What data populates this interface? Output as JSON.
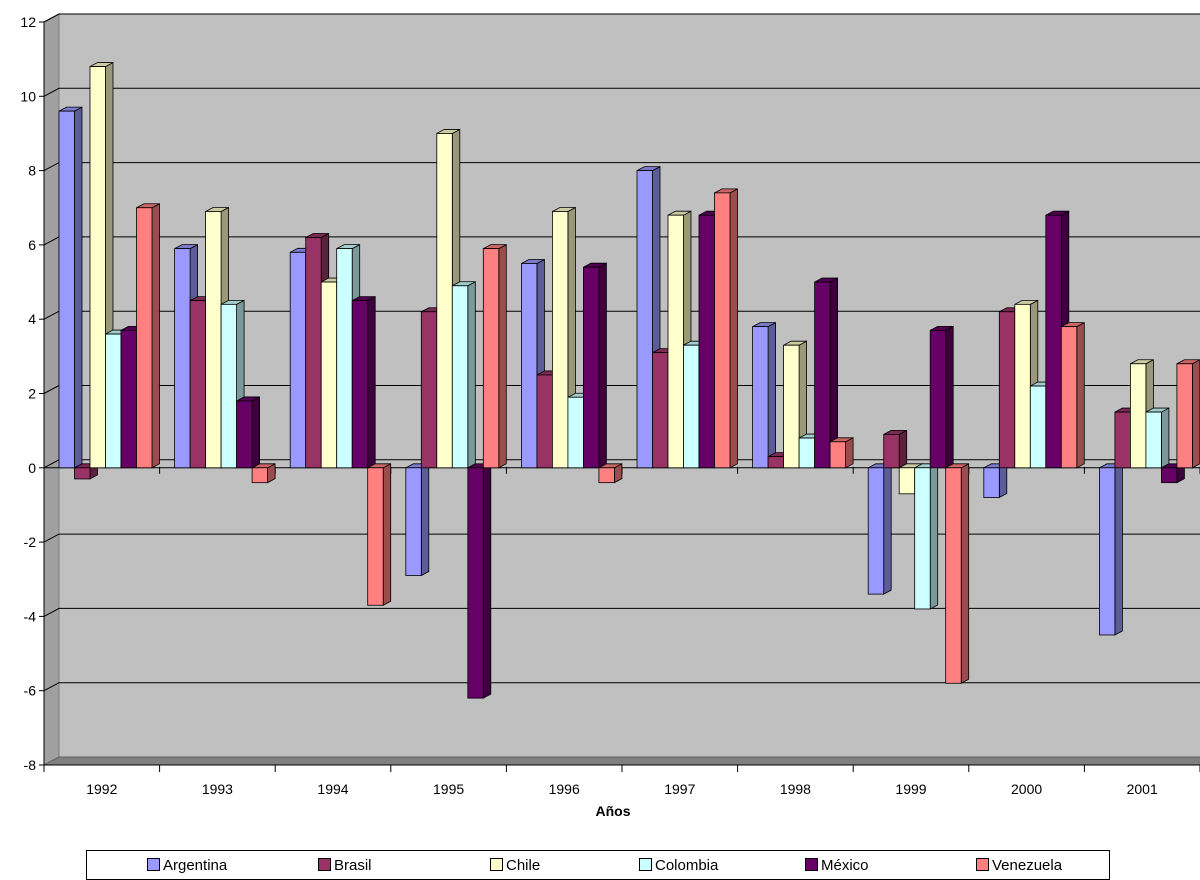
{
  "chart_data": {
    "type": "bar",
    "title": "",
    "xlabel": "Años",
    "ylabel": "",
    "ylim": [
      -8,
      12
    ],
    "yticks": [
      "-8",
      "-6",
      "-4",
      "-2",
      "0",
      "2",
      "4",
      "6",
      "8",
      "10",
      "12"
    ],
    "grid": true,
    "legend_position": "bottom",
    "categories": [
      "1992",
      "1993",
      "1994",
      "1995",
      "1996",
      "1997",
      "1998",
      "1999",
      "2000",
      "2001"
    ],
    "series": [
      {
        "name": "Argentina",
        "color": "#9999FF",
        "values": [
          9.6,
          5.9,
          5.8,
          -2.9,
          5.5,
          8.0,
          3.8,
          -3.4,
          -0.8,
          -4.5
        ]
      },
      {
        "name": "Brasil",
        "color": "#993366",
        "values": [
          -0.3,
          4.5,
          6.2,
          4.2,
          2.5,
          3.1,
          0.3,
          0.9,
          4.2,
          1.5
        ]
      },
      {
        "name": "Chile",
        "color": "#FFFFCC",
        "values": [
          10.8,
          6.9,
          5.0,
          9.0,
          6.9,
          6.8,
          3.3,
          -0.7,
          4.4,
          2.8
        ]
      },
      {
        "name": "Colombia",
        "color": "#CCFFFF",
        "values": [
          3.6,
          4.4,
          5.9,
          4.9,
          1.9,
          3.3,
          0.8,
          -3.8,
          2.2,
          1.5
        ]
      },
      {
        "name": "México",
        "color": "#660066",
        "values": [
          3.7,
          1.8,
          4.5,
          -6.2,
          5.4,
          6.8,
          5.0,
          3.7,
          6.8,
          -0.4
        ]
      },
      {
        "name": "Venezuela",
        "color": "#FF8080",
        "values": [
          7.0,
          -0.4,
          -3.7,
          5.9,
          -0.4,
          7.4,
          0.7,
          -5.8,
          3.8,
          2.8
        ]
      }
    ]
  }
}
